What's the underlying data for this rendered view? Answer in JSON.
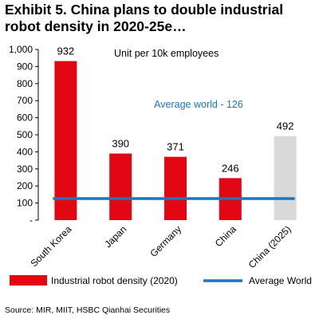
{
  "title_lines": [
    "Exhibit 5. China plans to double industrial",
    "robot density in 2020-25e…"
  ],
  "source": "Source: MIR, MIIT, HSBC Qianhai Securities",
  "chart_data": {
    "type": "bar",
    "categories": [
      "South Korea",
      "Japan",
      "Germany",
      "China",
      "China (2025)"
    ],
    "series": [
      {
        "name": "Industrial robot density (2020)",
        "values": [
          932,
          390,
          371,
          246,
          492
        ],
        "colors": [
          "#e30613",
          "#e30613",
          "#e30613",
          "#e30613",
          "#d9d9d9"
        ]
      },
      {
        "name": "Average World",
        "type": "line",
        "values": [
          126,
          126,
          126,
          126,
          126
        ],
        "color": "#1f74bb"
      }
    ],
    "data_labels": [
      "932",
      "390",
      "371",
      "246",
      "492"
    ],
    "annotations": [
      "Unit per 10k employees",
      "Average world - 126"
    ],
    "ylim": [
      0,
      1000
    ],
    "yticks": [
      0,
      100,
      200,
      300,
      400,
      500,
      600,
      700,
      800,
      900,
      1000
    ],
    "ytick_labels": [
      "-",
      "100",
      "200",
      "300",
      "400",
      "500",
      "600",
      "700",
      "800",
      "900",
      "1,000"
    ],
    "annotation_color": "#1f74bb",
    "legend_placement": "bottom",
    "grid": false
  }
}
